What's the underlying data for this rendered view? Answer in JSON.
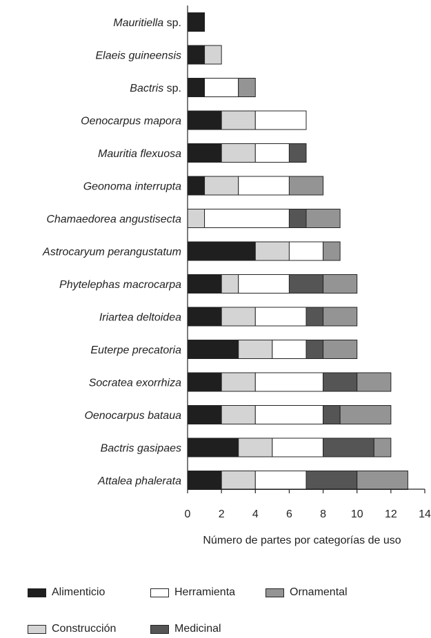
{
  "chart_data": {
    "type": "bar",
    "orientation": "horizontal",
    "stacked": true,
    "xlabel": "Número de partes por categorías de uso",
    "xlim": [
      0,
      14
    ],
    "xticks": [
      "0",
      "2",
      "4",
      "6",
      "8",
      "10",
      "12",
      "14"
    ],
    "grid": false,
    "legend_position": "bottom",
    "categories": [
      {
        "name": "Mauritiella",
        "suffix": " sp."
      },
      {
        "name": "Elaeis guineensis",
        "suffix": ""
      },
      {
        "name": "Bactris",
        "suffix": " sp."
      },
      {
        "name": "Oenocarpus mapora",
        "suffix": ""
      },
      {
        "name": "Mauritia flexuosa",
        "suffix": ""
      },
      {
        "name": "Geonoma interrupta",
        "suffix": ""
      },
      {
        "name": "Chamaedorea angustisecta",
        "suffix": ""
      },
      {
        "name": "Astrocaryum perangustatum",
        "suffix": ""
      },
      {
        "name": "Phytelephas macrocarpa",
        "suffix": ""
      },
      {
        "name": "Iriartea deltoidea",
        "suffix": ""
      },
      {
        "name": "Euterpe precatoria",
        "suffix": ""
      },
      {
        "name": "Socratea exorrhiza",
        "suffix": ""
      },
      {
        "name": "Oenocarpus bataua",
        "suffix": ""
      },
      {
        "name": "Bactris gasipaes",
        "suffix": ""
      },
      {
        "name": "Attalea phalerata",
        "suffix": ""
      }
    ],
    "series": [
      {
        "name": "Alimenticio",
        "color": "#1f1f1f",
        "values": [
          1,
          1,
          1,
          2,
          2,
          1,
          0,
          4,
          2,
          2,
          3,
          2,
          2,
          3,
          2
        ]
      },
      {
        "name": "Construcción",
        "color": "#d4d4d4",
        "values": [
          0,
          1,
          0,
          2,
          2,
          2,
          1,
          2,
          1,
          2,
          2,
          2,
          2,
          2,
          2
        ]
      },
      {
        "name": "Herramienta",
        "color": "#ffffff",
        "values": [
          0,
          0,
          2,
          3,
          2,
          3,
          5,
          2,
          3,
          3,
          2,
          4,
          4,
          3,
          3
        ]
      },
      {
        "name": "Medicinal",
        "color": "#555555",
        "values": [
          0,
          0,
          0,
          0,
          1,
          0,
          1,
          0,
          2,
          1,
          1,
          2,
          1,
          3,
          3
        ]
      },
      {
        "name": "Ornamental",
        "color": "#949494",
        "values": [
          0,
          0,
          1,
          0,
          0,
          2,
          2,
          1,
          2,
          2,
          2,
          2,
          3,
          1,
          3
        ]
      }
    ]
  },
  "legend": {
    "alimenticio": "Alimenticio",
    "herramienta": "Herramienta",
    "ornamental": "Ornamental",
    "construccion": "Construcción",
    "medicinal": "Medicinal"
  }
}
